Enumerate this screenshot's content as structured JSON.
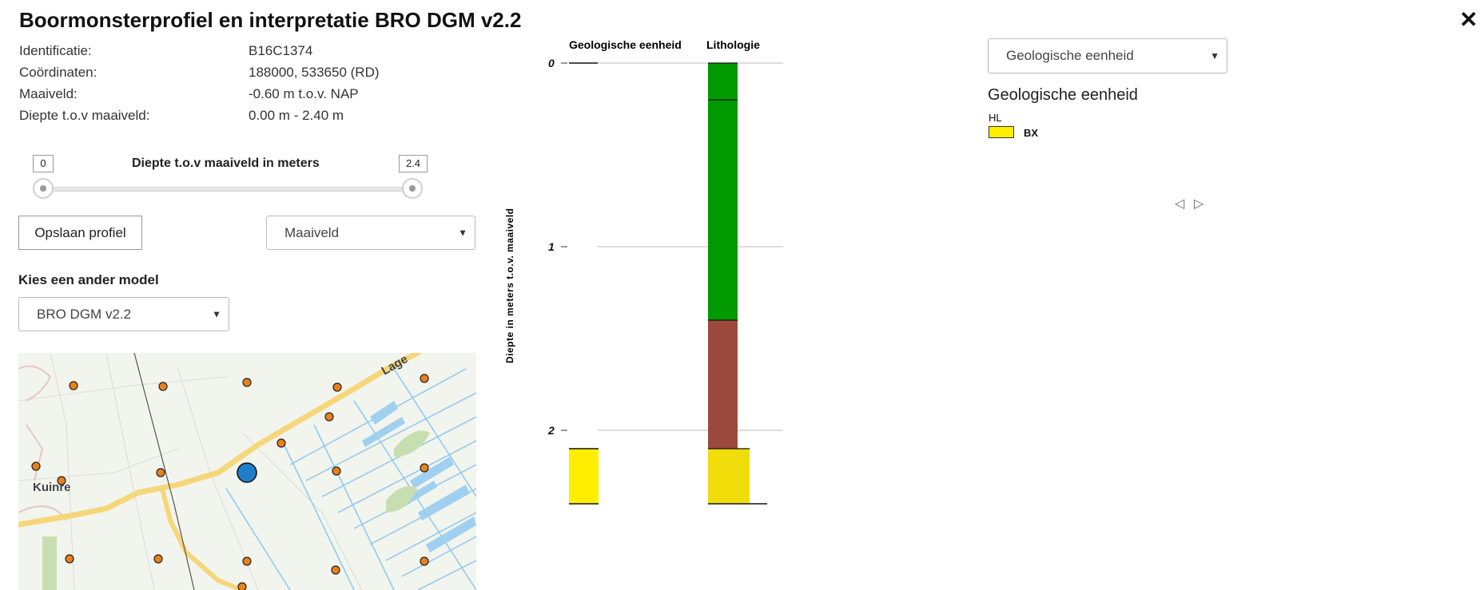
{
  "header": {
    "title": "Boormonsterprofiel en interpretatie BRO DGM v2.2",
    "close_glyph": "✕"
  },
  "info": {
    "rows": [
      {
        "label": "Identificatie:",
        "value": "B16C1374"
      },
      {
        "label": "Coördinaten:",
        "value": "188000, 533650 (RD)"
      },
      {
        "label": "Maaiveld:",
        "value": "-0.60 m t.o.v. NAP"
      },
      {
        "label": "Diepte t.o.v maaiveld:",
        "value": "0.00 m - 2.40 m"
      }
    ]
  },
  "depth_slider": {
    "title": "Diepte t.o.v maaiveld in meters",
    "min_value": "0",
    "max_value": "2.4",
    "range_start_fraction": 0,
    "range_end_fraction": 1
  },
  "actions": {
    "save_label": "Opslaan profiel",
    "reference_select": "Maaiveld"
  },
  "model": {
    "heading": "Kies een ander model",
    "selected": "BRO DGM v2.2"
  },
  "map": {
    "place_label": "Kuinre",
    "road_label": "Lage",
    "colors": {
      "road": "#f5d77a",
      "water": "#8ec8ee",
      "marker": "#e9801a",
      "selected": "#1f7cc8"
    }
  },
  "profile": {
    "columns": [
      "Geologische eenheid",
      "Lithologie"
    ],
    "axis_label": "Diepte in meters t.o.v. maaiveld",
    "ticks": [
      "0",
      "1",
      "2"
    ],
    "depth_range_m": [
      0,
      2.4
    ],
    "geologische_eenheid": [
      {
        "code": "BX",
        "top_m": 2.1,
        "bottom_m": 2.4,
        "color": "#ffee00"
      }
    ],
    "lithologie": [
      {
        "top_m": 0.0,
        "bottom_m": 0.2,
        "color": "#009900"
      },
      {
        "top_m": 0.2,
        "bottom_m": 1.4,
        "color": "#009900"
      },
      {
        "top_m": 1.4,
        "bottom_m": 2.1,
        "color": "#9c4a3e"
      },
      {
        "top_m": 2.1,
        "bottom_m": 2.4,
        "color": "#f0dd0a"
      }
    ]
  },
  "legend": {
    "select_value": "Geologische eenheid",
    "title": "Geologische eenheid",
    "group": "HL",
    "items": [
      {
        "code": "BX",
        "color": "#ffee00"
      }
    ],
    "prev_glyph": "◁",
    "next_glyph": "▷"
  }
}
